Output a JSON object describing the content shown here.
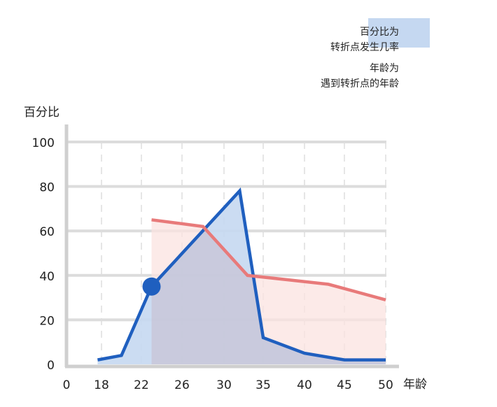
{
  "chart_data": {
    "type": "area",
    "title": "",
    "ylabel": "百分比",
    "xlabel": "年龄",
    "ylim": [
      0,
      100
    ],
    "y_ticks": [
      0,
      20,
      40,
      60,
      80,
      100
    ],
    "x_tick_labels": [
      "0",
      "18",
      "22",
      "26",
      "30",
      "35",
      "40",
      "45",
      "50"
    ],
    "grid": "horizontal solid, vertical dashed",
    "legend_position": "top-right",
    "series": [
      {
        "name": "百分比为\n转折点发生几率",
        "color": "#1f5fbf",
        "fill": "#c5d8f1",
        "x": [
          "16",
          "20",
          "23",
          "32",
          "35",
          "40",
          "45",
          "50"
        ],
        "y": [
          2,
          4,
          35,
          78,
          12,
          5,
          2,
          2
        ]
      },
      {
        "name": "年龄为\n遇到转折点的年龄",
        "color": "#e87a7a",
        "fill": "#fbe3e0",
        "x": [
          "23",
          "28",
          "33",
          "38",
          "43",
          "50"
        ],
        "y": [
          65,
          62,
          40,
          38,
          36,
          29
        ]
      }
    ],
    "highlight_point": {
      "x": "23",
      "y": 35
    }
  },
  "legend": {
    "item1_line1": "百分比为",
    "item1_line2": "转折点发生几率",
    "item2_line1": "年龄为",
    "item2_line2": "遇到转折点的年龄",
    "item1_color": "#c5d8f1"
  },
  "axes": {
    "y_title": "百分比",
    "x_title": "年龄"
  }
}
